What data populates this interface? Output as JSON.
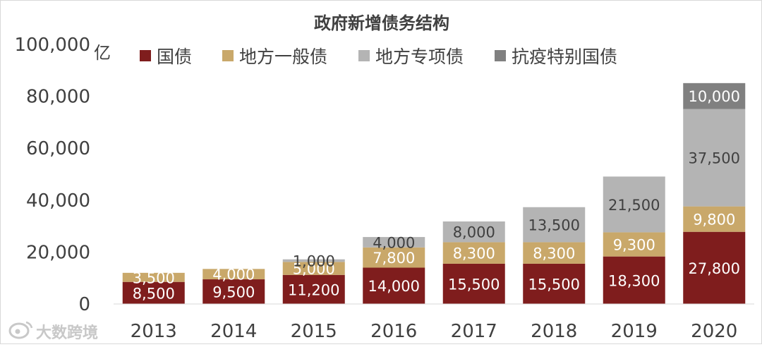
{
  "chart_data": {
    "type": "bar",
    "stacked": true,
    "title": "政府新增债务结构",
    "y_unit": "亿",
    "categories": [
      "2013",
      "2014",
      "2015",
      "2016",
      "2017",
      "2018",
      "2019",
      "2020"
    ],
    "ylim": [
      0,
      100000
    ],
    "yticks": [
      "100,000",
      "80,000",
      "60,000",
      "40,000",
      "20,000",
      "0"
    ],
    "ytick_values": [
      100000,
      80000,
      60000,
      40000,
      20000,
      0
    ],
    "grid": false,
    "legend_position": "top",
    "series": [
      {
        "name": "国债",
        "color": "#7f1d1d",
        "label_color": "#ffffff",
        "values": [
          8500,
          9500,
          11200,
          14000,
          15500,
          15500,
          18300,
          27800
        ],
        "labels": [
          "8,500",
          "9,500",
          "11,200",
          "14,000",
          "15,500",
          "15,500",
          "18,300",
          "27,800"
        ]
      },
      {
        "name": "地方一般债",
        "color": "#c9a86a",
        "label_color": "#ffffff",
        "values": [
          3500,
          4000,
          5000,
          7800,
          8300,
          8300,
          9300,
          9800
        ],
        "labels": [
          "3,500",
          "4,000",
          "5,000",
          "7,800",
          "8,300",
          "8,300",
          "9,300",
          "9,800"
        ]
      },
      {
        "name": "地方专项债",
        "color": "#b4b4b4",
        "label_color": "#404040",
        "values": [
          0,
          0,
          1000,
          4000,
          8000,
          13500,
          21500,
          37500
        ],
        "labels": [
          "",
          "",
          "1,000",
          "4,000",
          "8,000",
          "13,500",
          "21,500",
          "37,500"
        ]
      },
      {
        "name": "抗疫特别国债",
        "color": "#808080",
        "label_color": "#ffffff",
        "values": [
          0,
          0,
          0,
          0,
          0,
          0,
          0,
          10000
        ],
        "labels": [
          "",
          "",
          "",
          "",
          "",
          "",
          "",
          "10,000"
        ]
      }
    ]
  },
  "watermark": {
    "text": "大数跨境",
    "icon": "weibo-logo-icon"
  }
}
